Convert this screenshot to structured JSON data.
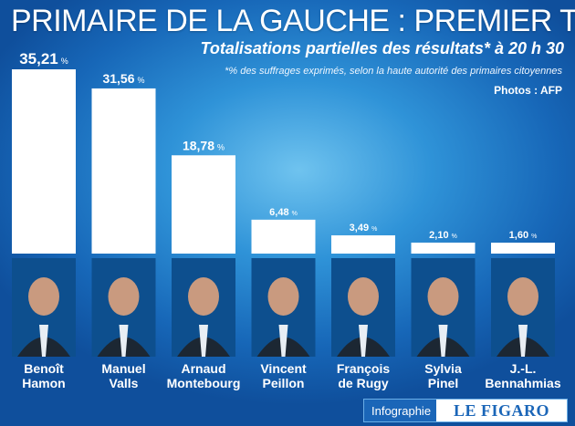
{
  "header": {
    "title": "PRIMAIRE DE LA GAUCHE : PREMIER TOUR",
    "subtitle": "Totalisations partielles des résultats* à 20 h 30",
    "footnote": "*% des suffrages exprimés, selon la haute autorité des primaires citoyennes",
    "credit": "Photos : AFP"
  },
  "chart_data": {
    "type": "bar",
    "title": "PRIMAIRE DE LA GAUCHE : PREMIER TOUR",
    "categories": [
      [
        "Benoît",
        "Hamon"
      ],
      [
        "Manuel",
        "Valls"
      ],
      [
        "Arnaud",
        "Montebourg"
      ],
      [
        "Vincent",
        "Peillon"
      ],
      [
        "François",
        "de Rugy"
      ],
      [
        "Sylvia",
        "Pinel"
      ],
      [
        "J.-L.",
        "Bennahmias"
      ]
    ],
    "values": [
      35.21,
      31.56,
      18.78,
      6.48,
      3.49,
      2.1,
      1.6
    ],
    "value_labels": [
      "35,21",
      "31,56",
      "18,78",
      "6,48",
      "3,49",
      "2,10",
      "1,60"
    ],
    "unit": "%",
    "ylim": [
      0,
      35.21
    ],
    "grid": false,
    "bar_color": "#ffffff"
  },
  "footer": {
    "info_label": "Infographie",
    "brand": "LE FIGARO"
  }
}
